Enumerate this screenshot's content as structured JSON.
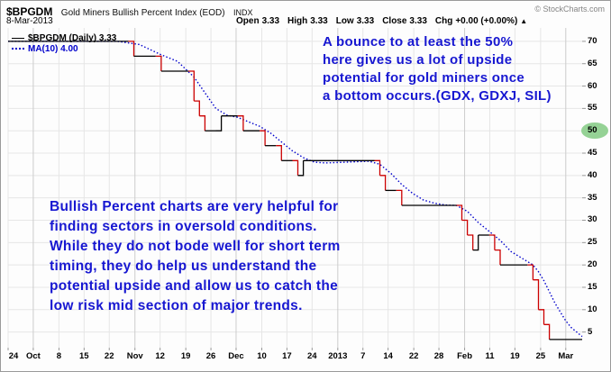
{
  "header": {
    "symbol": "$BPGDM",
    "title": "Gold Miners Bullish Percent Index (EOD)",
    "exchange": "INDX",
    "copyright": "© StockCharts.com",
    "date": "8-Mar-2013",
    "ohlc": [
      {
        "label": "Open",
        "value": "3.33"
      },
      {
        "label": "High",
        "value": "3.33"
      },
      {
        "label": "Low",
        "value": "3.33"
      },
      {
        "label": "Close",
        "value": "3.33"
      },
      {
        "label": "Chg",
        "value": "+0.00 (+0.00%)"
      }
    ],
    "change_arrow": "▲"
  },
  "legend": {
    "price_label": "$BPGDM (Daily) 3.33",
    "ma_label": "MA(10) 4.00"
  },
  "annotations": {
    "top_right": [
      "A bounce to at least the 50%",
      "here gives us a lot of upside",
      "potential for gold miners once",
      "a bottom occurs.(GDX, GDXJ, SIL)"
    ],
    "bottom_left": [
      "Bullish Percent charts are very helpful for",
      "finding sectors in oversold conditions.",
      "While they do not bode well for short term",
      "timing, they do help us understand the",
      "potential upside and allow us to catch the",
      "low risk mid section of major trends."
    ]
  },
  "chart_data": {
    "type": "line",
    "title": "$BPGDM Gold Miners Bullish Percent Index (EOD) INDX",
    "x_unit": "trading days from 24-Sep-2012 to 8-Mar-2013",
    "x_range": [
      0,
      105
    ],
    "y_range": [
      1.5,
      73
    ],
    "y_ticks": [
      70,
      65,
      60,
      55,
      50,
      45,
      40,
      35,
      30,
      25,
      20,
      15,
      10,
      5
    ],
    "highlighted_y_tick": 50,
    "x_ticks": [
      {
        "label": "24",
        "day": 0,
        "month": false
      },
      {
        "label": "Oct",
        "day": 4.6,
        "month": true
      },
      {
        "label": "8",
        "day": 9.3,
        "month": false
      },
      {
        "label": "15",
        "day": 13.9,
        "month": false
      },
      {
        "label": "22",
        "day": 18.5,
        "month": false
      },
      {
        "label": "Nov",
        "day": 23.2,
        "month": true
      },
      {
        "label": "12",
        "day": 27.8,
        "month": false
      },
      {
        "label": "19",
        "day": 32.5,
        "month": false
      },
      {
        "label": "26",
        "day": 37.1,
        "month": false
      },
      {
        "label": "Dec",
        "day": 41.7,
        "month": true
      },
      {
        "label": "10",
        "day": 46.4,
        "month": false
      },
      {
        "label": "17",
        "day": 51.0,
        "month": false
      },
      {
        "label": "24",
        "day": 55.6,
        "month": false
      },
      {
        "label": "2013",
        "day": 60.3,
        "month": true
      },
      {
        "label": "7",
        "day": 64.9,
        "month": false
      },
      {
        "label": "14",
        "day": 69.5,
        "month": false
      },
      {
        "label": "22",
        "day": 74.2,
        "month": false
      },
      {
        "label": "28",
        "day": 78.8,
        "month": false
      },
      {
        "label": "Feb",
        "day": 83.5,
        "month": true
      },
      {
        "label": "11",
        "day": 88.1,
        "month": false
      },
      {
        "label": "19",
        "day": 92.7,
        "month": false
      },
      {
        "label": "25",
        "day": 97.4,
        "month": false
      },
      {
        "label": "Mar",
        "day": 102.0,
        "month": true
      }
    ],
    "series": [
      {
        "name": "$BPGDM (Daily)",
        "style": "step",
        "last_value": 3.33,
        "color_up": "#000000",
        "color_down": "#cc0000",
        "points": [
          [
            0,
            70
          ],
          [
            22,
            70
          ],
          [
            23,
            66.67
          ],
          [
            27,
            66.67
          ],
          [
            28,
            63.33
          ],
          [
            33,
            63.33
          ],
          [
            34,
            56.67
          ],
          [
            35,
            53.33
          ],
          [
            36,
            50
          ],
          [
            38,
            50
          ],
          [
            39,
            53.33
          ],
          [
            42,
            53.33
          ],
          [
            43,
            50
          ],
          [
            46,
            50
          ],
          [
            47,
            46.67
          ],
          [
            49,
            46.67
          ],
          [
            50,
            43.33
          ],
          [
            52,
            43.33
          ],
          [
            53,
            40
          ],
          [
            54,
            43.33
          ],
          [
            67,
            43.33
          ],
          [
            68,
            40
          ],
          [
            69,
            36.67
          ],
          [
            71,
            36.67
          ],
          [
            72,
            33.33
          ],
          [
            82,
            33.33
          ],
          [
            83,
            30
          ],
          [
            84,
            26.67
          ],
          [
            85,
            23.33
          ],
          [
            86,
            26.67
          ],
          [
            88,
            26.67
          ],
          [
            89,
            23.33
          ],
          [
            90,
            20
          ],
          [
            95,
            20
          ],
          [
            96,
            16.67
          ],
          [
            97,
            10
          ],
          [
            98,
            6.67
          ],
          [
            99,
            3.33
          ],
          [
            105,
            3.33
          ]
        ]
      },
      {
        "name": "MA(10)",
        "style": "dotted",
        "last_value": 4.0,
        "color": "#0000cc",
        "points": [
          [
            0,
            70
          ],
          [
            20,
            70
          ],
          [
            24,
            69.3
          ],
          [
            28,
            67
          ],
          [
            31,
            65.5
          ],
          [
            34,
            62
          ],
          [
            36,
            58.5
          ],
          [
            38,
            55
          ],
          [
            40,
            53.5
          ],
          [
            42,
            53
          ],
          [
            44,
            52
          ],
          [
            46,
            51
          ],
          [
            48,
            49.5
          ],
          [
            50,
            47.5
          ],
          [
            52,
            45.5
          ],
          [
            54,
            44
          ],
          [
            56,
            43
          ],
          [
            58,
            42.8
          ],
          [
            62,
            43
          ],
          [
            66,
            43.2
          ],
          [
            68,
            42.5
          ],
          [
            70,
            40.5
          ],
          [
            72,
            38
          ],
          [
            74,
            36
          ],
          [
            76,
            34.5
          ],
          [
            78,
            33.8
          ],
          [
            80,
            33.4
          ],
          [
            82,
            33.3
          ],
          [
            84,
            32
          ],
          [
            86,
            29.5
          ],
          [
            88,
            27.5
          ],
          [
            90,
            25.5
          ],
          [
            92,
            23
          ],
          [
            94,
            21.5
          ],
          [
            96,
            20
          ],
          [
            97,
            18.5
          ],
          [
            98,
            16.5
          ],
          [
            99,
            14
          ],
          [
            100,
            11.5
          ],
          [
            101,
            9.5
          ],
          [
            102,
            7.5
          ],
          [
            103,
            6
          ],
          [
            104,
            5
          ],
          [
            105,
            4
          ]
        ]
      }
    ],
    "grid": true,
    "legend_position": "top-left",
    "colors": {
      "price_up": "#000000",
      "price_down": "#cc0000",
      "ma": "#0000cc",
      "grid": "#e6e6e6",
      "grid_month": "#cccccc",
      "axis_tick": "#999999",
      "annotation": "#1717d1",
      "highlight": "#95d295"
    }
  }
}
